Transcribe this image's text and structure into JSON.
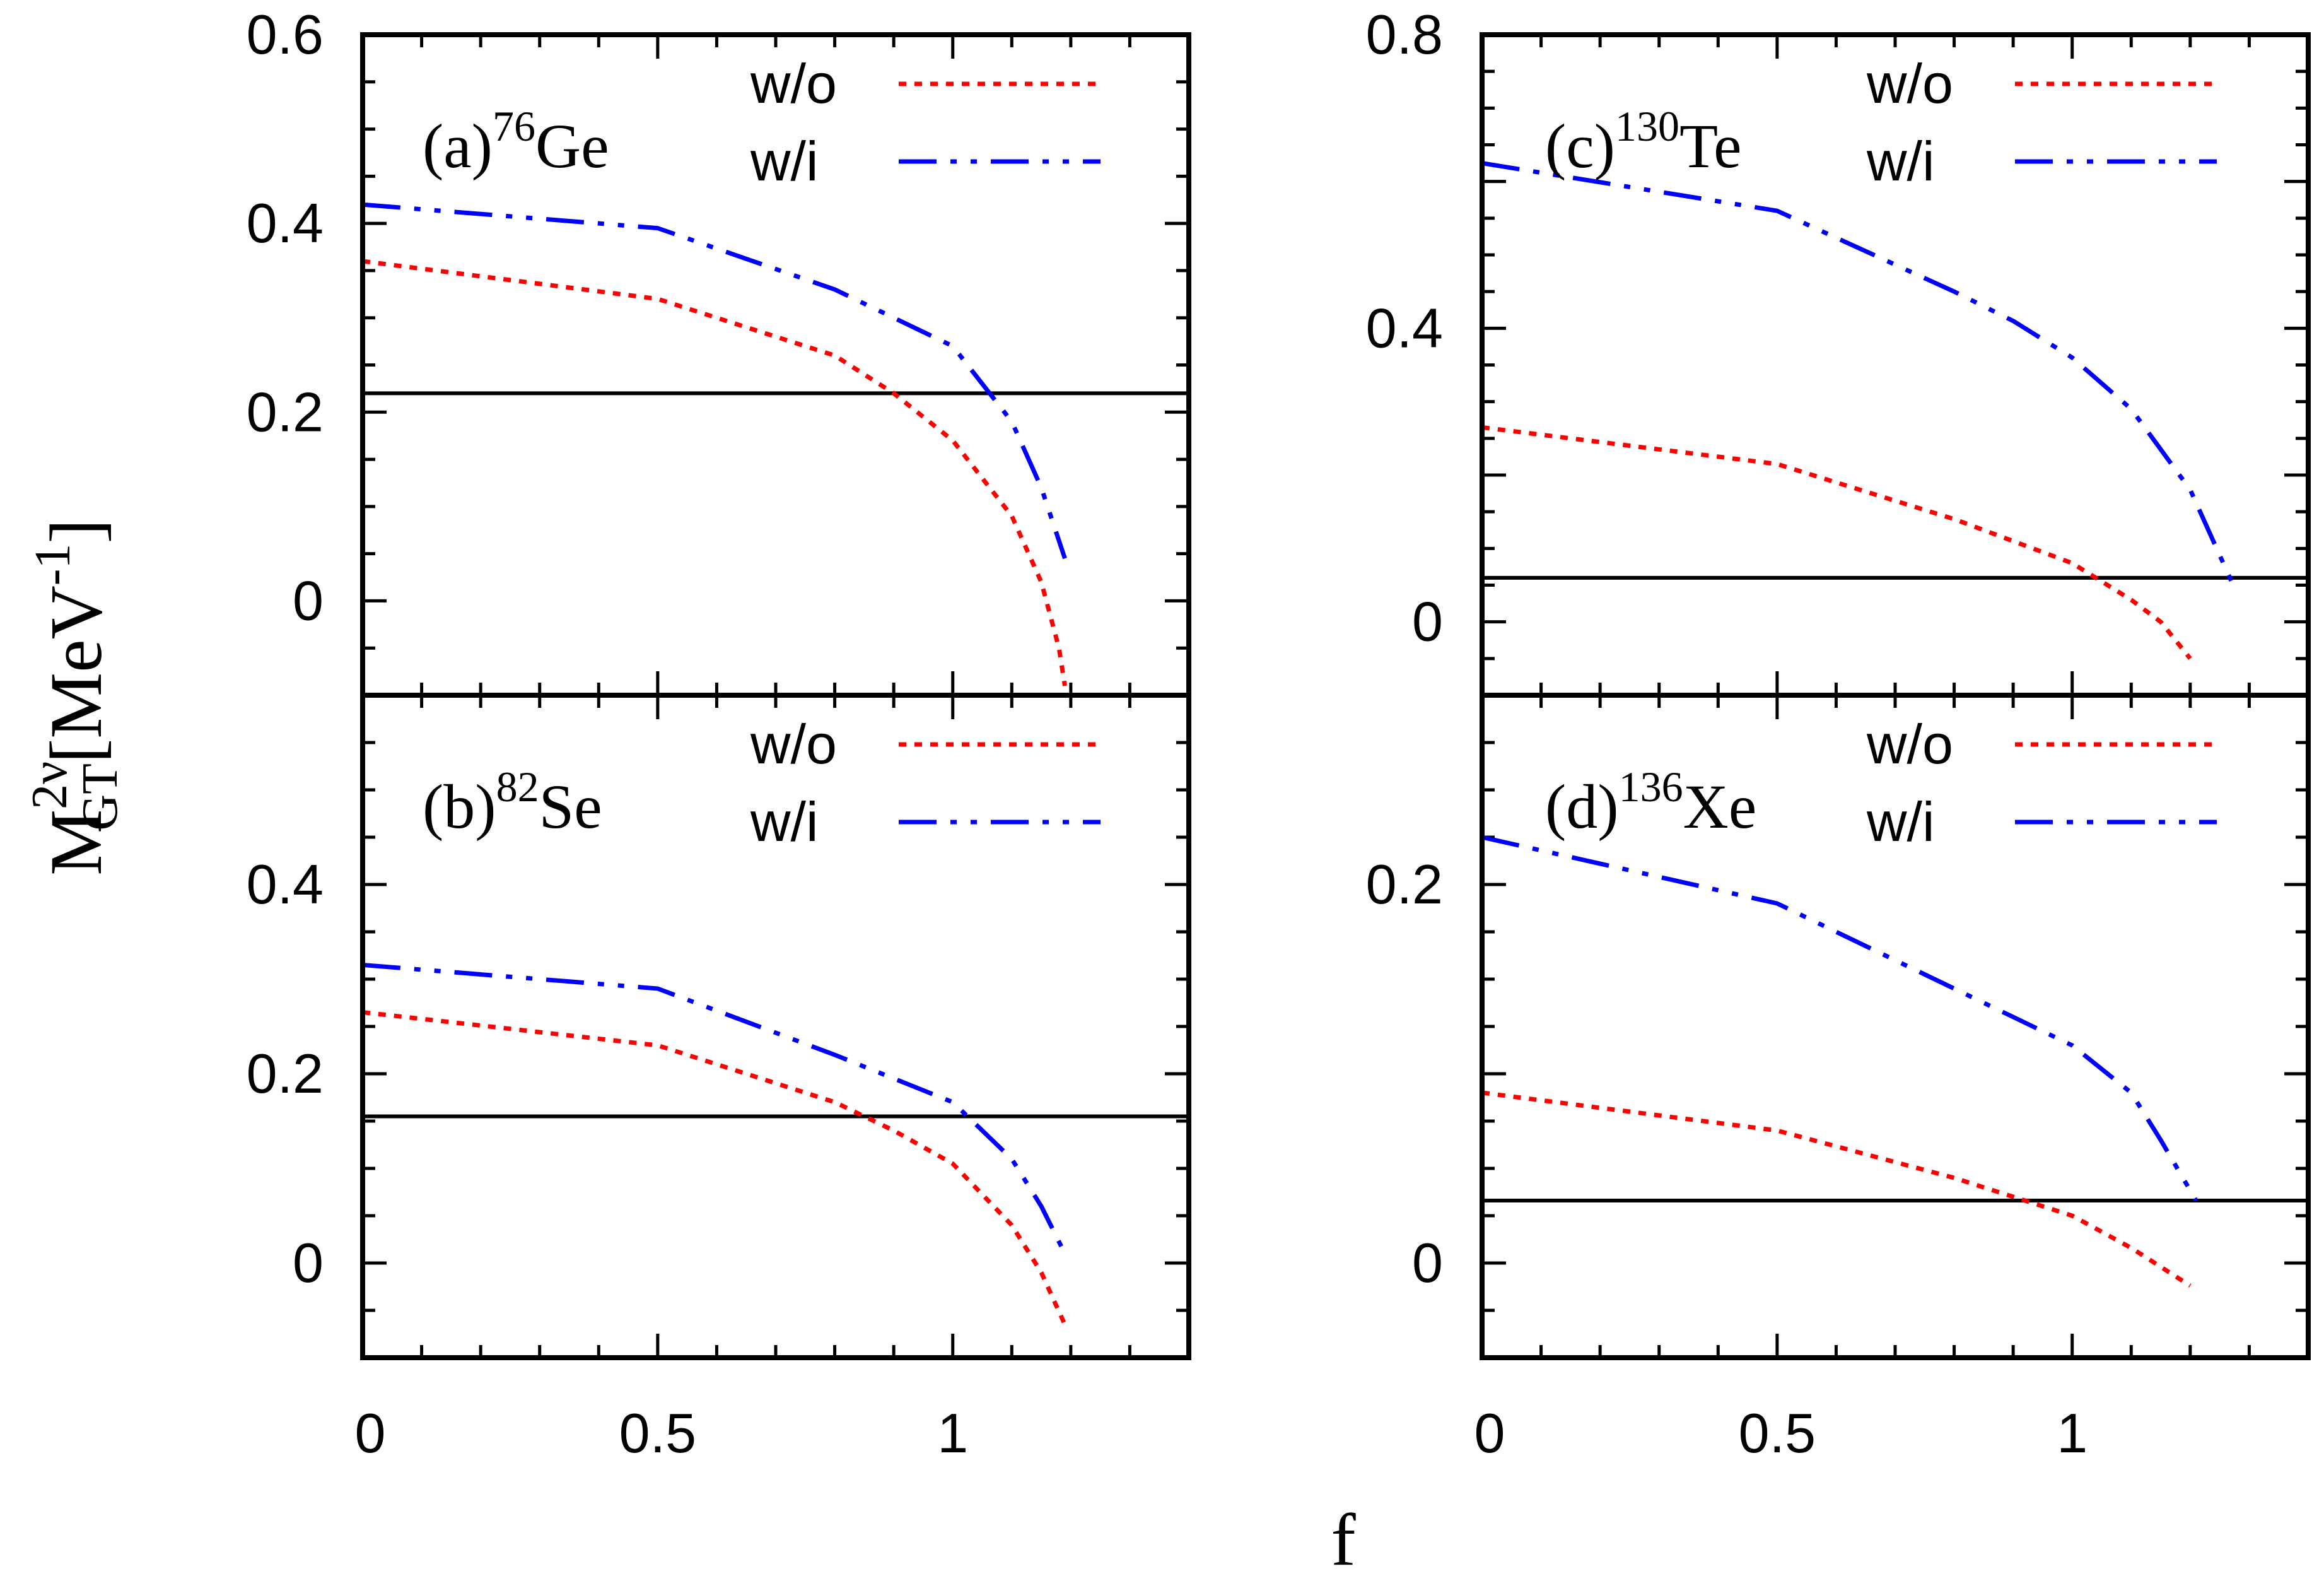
{
  "figure": {
    "ylabel": {
      "main": "M",
      "sup": "2ν",
      "sub": "GT",
      "unit_open": "[MeV",
      "unit_sup": "-1",
      "unit_close": "]"
    },
    "xlabel": "f"
  },
  "colors": {
    "wo": "#ff0000",
    "wi": "#0000ff",
    "reference": "#000000",
    "axes": "#000000"
  },
  "chart_data": [
    {
      "id": "a",
      "type": "line",
      "panel_prefix": "(a)",
      "mass": "76",
      "element": "Ge",
      "xlim": [
        0,
        1.4
      ],
      "ylim": [
        -0.1,
        0.6
      ],
      "yticks": [
        {
          "v": 0,
          "label": "0"
        },
        {
          "v": 0.2,
          "label": "0.2"
        },
        {
          "v": 0.4,
          "label": "0.4"
        },
        {
          "v": 0.6,
          "label": "0.6"
        }
      ],
      "ymajor": [
        0,
        0.2,
        0.4,
        0.6
      ],
      "yminor_step": 0.05,
      "xticks": [],
      "xmajor": [
        0,
        0.5,
        1
      ],
      "xminor_step": 0.1,
      "reference": 0.22,
      "series": [
        {
          "key": "wo",
          "name": "w/o",
          "style": "dotted",
          "x": [
            0,
            0.5,
            0.8,
            0.9,
            1.0,
            1.1,
            1.15,
            1.18,
            1.19
          ],
          "y": [
            0.36,
            0.32,
            0.26,
            0.22,
            0.17,
            0.09,
            0.02,
            -0.05,
            -0.09
          ]
        },
        {
          "key": "wi",
          "name": "w/i",
          "style": "dashdot",
          "x": [
            0,
            0.5,
            0.8,
            0.9,
            1.0,
            1.1,
            1.15,
            1.19
          ],
          "y": [
            0.42,
            0.395,
            0.33,
            0.3,
            0.27,
            0.19,
            0.12,
            0.045
          ]
        }
      ]
    },
    {
      "id": "b",
      "type": "line",
      "panel_prefix": "(b)",
      "mass": "82",
      "element": "Se",
      "xlim": [
        0,
        1.4
      ],
      "ylim": [
        -0.1,
        0.6
      ],
      "yticks": [
        {
          "v": 0,
          "label": "0"
        },
        {
          "v": 0.2,
          "label": "0.2"
        },
        {
          "v": 0.4,
          "label": "0.4"
        }
      ],
      "ymajor": [
        0,
        0.2,
        0.4,
        0.6
      ],
      "yminor_step": 0.05,
      "xticks": [
        {
          "v": 0,
          "label": "0"
        },
        {
          "v": 0.5,
          "label": "0.5"
        },
        {
          "v": 1,
          "label": "1"
        }
      ],
      "xmajor": [
        0,
        0.5,
        1
      ],
      "xminor_step": 0.1,
      "reference": 0.155,
      "series": [
        {
          "key": "wo",
          "name": "w/o",
          "style": "dotted",
          "x": [
            0,
            0.5,
            0.8,
            0.9,
            1.0,
            1.1,
            1.15,
            1.19
          ],
          "y": [
            0.265,
            0.23,
            0.17,
            0.14,
            0.105,
            0.04,
            -0.01,
            -0.065
          ]
        },
        {
          "key": "wi",
          "name": "w/i",
          "style": "dashdot",
          "x": [
            0,
            0.5,
            0.8,
            0.9,
            1.0,
            1.1,
            1.15,
            1.19
          ],
          "y": [
            0.315,
            0.29,
            0.22,
            0.195,
            0.17,
            0.11,
            0.06,
            0.01
          ]
        }
      ]
    },
    {
      "id": "c",
      "type": "line",
      "panel_prefix": "(c)",
      "mass": "130",
      "element": "Te",
      "xlim": [
        0,
        1.4
      ],
      "ylim": [
        -0.1,
        0.8
      ],
      "yticks": [
        {
          "v": 0,
          "label": "0"
        },
        {
          "v": 0.4,
          "label": "0.4"
        },
        {
          "v": 0.8,
          "label": "0.8"
        }
      ],
      "ymajor": [
        0,
        0.2,
        0.4,
        0.6,
        0.8
      ],
      "yminor_step": 0.05,
      "xticks": [],
      "xmajor": [
        0,
        0.5,
        1
      ],
      "xminor_step": 0.1,
      "reference": 0.06,
      "series": [
        {
          "key": "wo",
          "name": "w/o",
          "style": "dotted",
          "x": [
            0,
            0.5,
            0.8,
            0.9,
            1.0,
            1.1,
            1.15,
            1.2
          ],
          "y": [
            0.265,
            0.215,
            0.14,
            0.11,
            0.08,
            0.03,
            0.0,
            -0.05
          ]
        },
        {
          "key": "wi",
          "name": "w/i",
          "style": "dashdot",
          "x": [
            0,
            0.5,
            0.8,
            0.9,
            1.0,
            1.1,
            1.2,
            1.27
          ],
          "y": [
            0.625,
            0.56,
            0.45,
            0.41,
            0.36,
            0.29,
            0.18,
            0.055
          ]
        }
      ]
    },
    {
      "id": "d",
      "type": "line",
      "panel_prefix": "(d)",
      "mass": "136",
      "element": "Xe",
      "xlim": [
        0,
        1.4
      ],
      "ylim": [
        -0.05,
        0.3
      ],
      "yticks": [
        {
          "v": 0,
          "label": "0"
        },
        {
          "v": 0.2,
          "label": "0.2"
        }
      ],
      "ymajor": [
        0,
        0.1,
        0.2,
        0.3
      ],
      "yminor_step": 0.025,
      "xticks": [
        {
          "v": 0,
          "label": "0"
        },
        {
          "v": 0.5,
          "label": "0.5"
        },
        {
          "v": 1,
          "label": "1"
        }
      ],
      "xmajor": [
        0,
        0.5,
        1
      ],
      "xminor_step": 0.1,
      "reference": 0.033,
      "series": [
        {
          "key": "wo",
          "name": "w/o",
          "style": "dotted",
          "x": [
            0,
            0.5,
            0.8,
            0.9,
            1.0,
            1.1,
            1.2
          ],
          "y": [
            0.09,
            0.07,
            0.045,
            0.035,
            0.025,
            0.008,
            -0.012
          ]
        },
        {
          "key": "wi",
          "name": "w/i",
          "style": "dashdot",
          "x": [
            0,
            0.5,
            0.8,
            0.9,
            1.0,
            1.1,
            1.15,
            1.21
          ],
          "y": [
            0.225,
            0.19,
            0.145,
            0.13,
            0.115,
            0.09,
            0.065,
            0.033
          ]
        }
      ]
    }
  ]
}
